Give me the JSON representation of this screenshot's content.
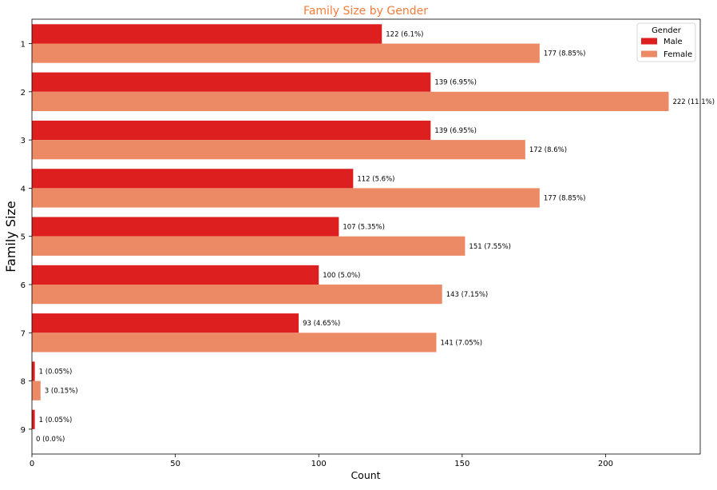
{
  "chart_data": {
    "type": "bar",
    "orientation": "horizontal",
    "title": "Family Size by Gender",
    "xlabel": "Count",
    "ylabel": "Family Size",
    "xlim": [
      0,
      233
    ],
    "xticks": [
      0,
      50,
      100,
      150,
      200
    ],
    "categories": [
      "1",
      "2",
      "3",
      "4",
      "5",
      "6",
      "7",
      "8",
      "9"
    ],
    "legend": {
      "title": "Gender",
      "position": "top-right"
    },
    "grid": false,
    "series": [
      {
        "name": "Male",
        "color": "#de1f1f",
        "values": [
          122,
          139,
          139,
          112,
          107,
          100,
          93,
          1,
          1
        ],
        "labels": [
          "122 (6.1%)",
          "139 (6.95%)",
          "139 (6.95%)",
          "112 (5.6%)",
          "107 (5.35%)",
          "100 (5.0%)",
          "93 (4.65%)",
          "1 (0.05%)",
          "1 (0.05%)"
        ]
      },
      {
        "name": "Female",
        "color": "#ec8a66",
        "values": [
          177,
          222,
          172,
          177,
          151,
          143,
          141,
          3,
          0
        ],
        "labels": [
          "177 (8.85%)",
          "222 (11.1%)",
          "172 (8.6%)",
          "177 (8.85%)",
          "151 (7.55%)",
          "143 (7.15%)",
          "141 (7.05%)",
          "3 (0.15%)",
          "0 (0.0%)"
        ]
      }
    ],
    "title_color": "#f47c3c"
  }
}
